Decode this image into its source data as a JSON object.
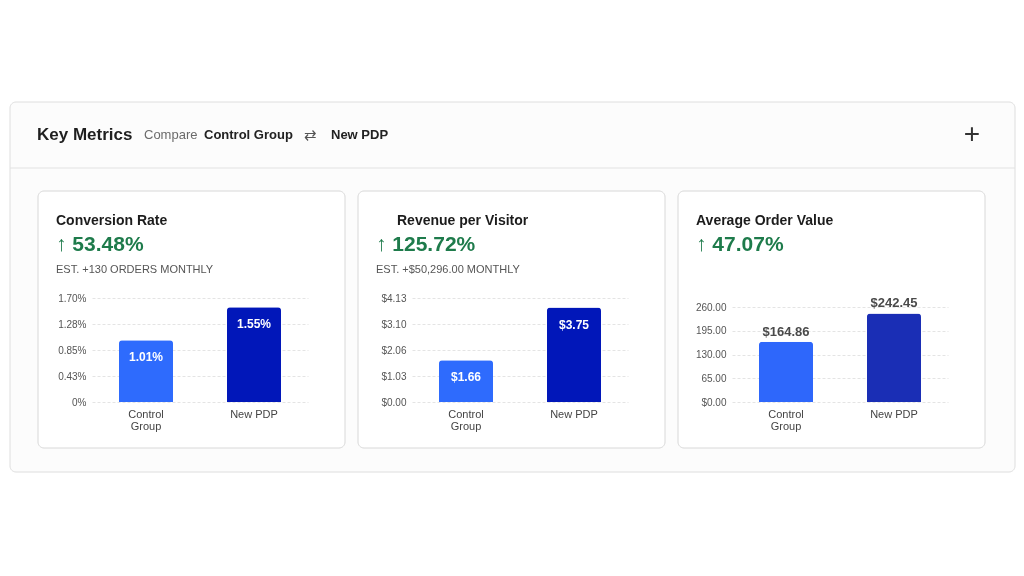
{
  "chart_data": [
    {
      "type": "other",
      "title": "Key Metrics",
      "annotations": [
        "Compare",
        "Control Group",
        "⇄",
        "New PDP",
        "+"
      ]
    },
    {
      "type": "bar",
      "title": "Conversion Rate",
      "subtitle": "↑ 53.48%",
      "annotations": [
        "EST. +130 ORDERS MONTHLY"
      ],
      "categories": [
        "Control Group",
        "New PDP"
      ],
      "values": [
        1.01,
        1.55
      ],
      "colors": [
        "#2e6bfd",
        "#0117b9"
      ],
      "value_labels": [
        "1.01%",
        "1.55%"
      ],
      "ylim": [
        0,
        1.7
      ],
      "yticks": [
        {
          "value": 0,
          "label": "0%"
        },
        {
          "value": 0.425,
          "label": "0.43%"
        },
        {
          "value": 0.85,
          "label": "0.85%"
        },
        {
          "value": 1.275,
          "label": "1.28%"
        },
        {
          "value": 1.7,
          "label": "1.70%"
        }
      ],
      "grid": "y"
    },
    {
      "type": "bar",
      "title": "Revenue per Visitor",
      "subtitle": "↑ 125.72%",
      "annotations": [
        "EST. +$50,296.00 MONTHLY"
      ],
      "categories": [
        "Control Group",
        "New PDP"
      ],
      "values": [
        1.66,
        3.75
      ],
      "colors": [
        "#2e6bfd",
        "#0117b9"
      ],
      "value_labels": [
        "$1.66",
        "$3.75"
      ],
      "ylim": [
        0,
        4.13
      ],
      "yticks": [
        {
          "value": 0,
          "label": "$0.00"
        },
        {
          "value": 1.0325,
          "label": "$1.03"
        },
        {
          "value": 2.065,
          "label": "$2.06"
        },
        {
          "value": 3.0975,
          "label": "$3.10"
        },
        {
          "value": 4.13,
          "label": "$4.13"
        }
      ],
      "grid": "y"
    },
    {
      "type": "bar",
      "title": "Average Order Value",
      "subtitle": "↑ 47.07%",
      "categories": [
        "Control Group",
        "New PDP"
      ],
      "values": [
        164.86,
        242.45
      ],
      "colors": [
        "#2e67fb",
        "#1a2eb5"
      ],
      "value_labels": [
        "$164.86",
        "$242.45"
      ],
      "ylim": [
        0,
        260
      ],
      "yticks": [
        {
          "value": 0,
          "label": "$0.00"
        },
        {
          "value": 65,
          "label": "65.00"
        },
        {
          "value": 130,
          "label": "130.00"
        },
        {
          "value": 195,
          "label": "195.00"
        },
        {
          "value": 260,
          "label": "260.00"
        }
      ],
      "grid": "y"
    }
  ]
}
